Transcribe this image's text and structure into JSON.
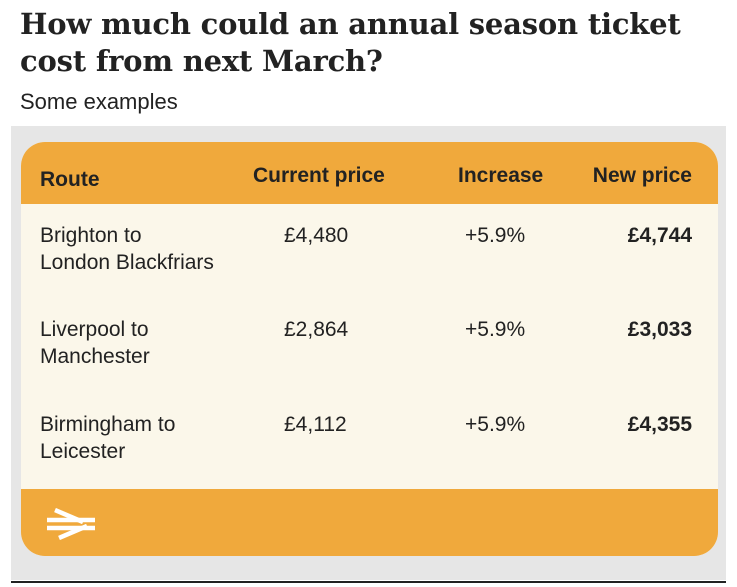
{
  "title": "How much could an annual season ticket cost from next March?",
  "subtitle": "Some examples",
  "colors": {
    "accent": "#f0a93c",
    "card_background": "#fbf7ea",
    "panel_background": "#e6e6e6",
    "text": "#222222"
  },
  "footer_icon": "national-rail-logo-icon",
  "chart_data": {
    "type": "table",
    "columns": [
      "Route",
      "Current price",
      "Increase",
      "New price"
    ],
    "rows": [
      {
        "route_line1": "Brighton to",
        "route_line2": "London Blackfriars",
        "current_price": "£4,480",
        "increase": "+5.9%",
        "new_price": "£4,744"
      },
      {
        "route_line1": "Liverpool to",
        "route_line2": "Manchester",
        "current_price": "£2,864",
        "increase": "+5.9%",
        "new_price": "£3,033"
      },
      {
        "route_line1": "Birmingham to",
        "route_line2": "Leicester",
        "current_price": "£4,112",
        "increase": "+5.9%",
        "new_price": "£4,355"
      }
    ]
  }
}
